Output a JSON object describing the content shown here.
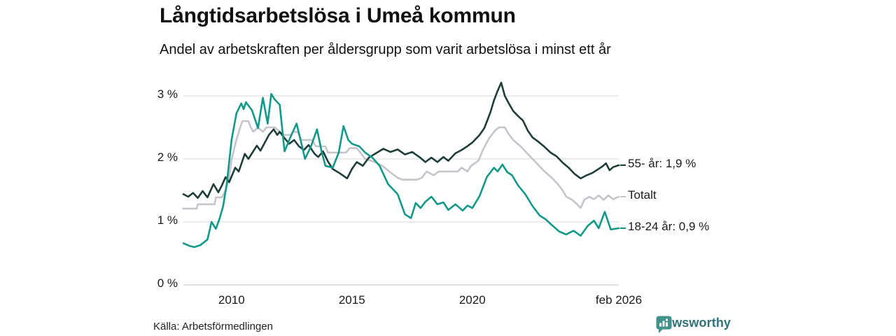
{
  "header": {
    "title": "Långtidsarbetslösa i Umeå kommun",
    "subtitle": "Andel av arbetskraften per åldersgrupp som varit arbetslösa i minst ett år"
  },
  "chart_data": {
    "type": "line",
    "title": "Långtidsarbetslösa i Umeå kommun",
    "subtitle": "Andel av arbetskraften per åldersgrupp som varit arbetslösa i minst ett år",
    "unit": "%",
    "x_axis": {
      "range": [
        2008.0,
        2026.083
      ],
      "ticks": [
        {
          "label": "2010",
          "value": 2010
        },
        {
          "label": "2015",
          "value": 2015
        },
        {
          "label": "2020",
          "value": 2020
        },
        {
          "label": "feb 2026",
          "value": 2026.083
        }
      ]
    },
    "y_axis": {
      "range": [
        0,
        3
      ],
      "grid": true,
      "ticks": [
        {
          "label": "0 %",
          "value": 0
        },
        {
          "label": "1 %",
          "value": 1
        },
        {
          "label": "2 %",
          "value": 2
        },
        {
          "label": "3 %",
          "value": 3
        }
      ]
    },
    "legend_position": "right-end-labels",
    "series": [
      {
        "name": "55- år",
        "end_label": "55- år: 1,9 %",
        "end_value": 1.9,
        "color": "#1e3c38",
        "points": [
          [
            2008.0,
            1.44
          ],
          [
            2008.2,
            1.4
          ],
          [
            2008.4,
            1.46
          ],
          [
            2008.6,
            1.38
          ],
          [
            2008.8,
            1.49
          ],
          [
            2009.0,
            1.39
          ],
          [
            2009.25,
            1.6
          ],
          [
            2009.45,
            1.47
          ],
          [
            2009.6,
            1.58
          ],
          [
            2009.75,
            1.71
          ],
          [
            2009.9,
            1.63
          ],
          [
            2010.15,
            1.86
          ],
          [
            2010.3,
            1.8
          ],
          [
            2010.55,
            2.08
          ],
          [
            2010.7,
            2.0
          ],
          [
            2011.05,
            2.21
          ],
          [
            2011.2,
            2.13
          ],
          [
            2011.55,
            2.38
          ],
          [
            2011.75,
            2.47
          ],
          [
            2011.9,
            2.38
          ],
          [
            2012.0,
            2.43
          ],
          [
            2012.2,
            2.33
          ],
          [
            2012.4,
            2.24
          ],
          [
            2012.6,
            2.3
          ],
          [
            2012.8,
            2.2
          ],
          [
            2013.0,
            2.14
          ],
          [
            2013.2,
            2.22
          ],
          [
            2013.45,
            2.08
          ],
          [
            2013.6,
            2.03
          ],
          [
            2013.8,
            2.12
          ],
          [
            2014.0,
            1.96
          ],
          [
            2014.2,
            1.84
          ],
          [
            2014.5,
            1.77
          ],
          [
            2014.8,
            1.69
          ],
          [
            2015.0,
            1.84
          ],
          [
            2015.2,
            1.95
          ],
          [
            2015.45,
            1.89
          ],
          [
            2015.7,
            2.02
          ],
          [
            2016.0,
            2.09
          ],
          [
            2016.3,
            2.16
          ],
          [
            2016.6,
            2.11
          ],
          [
            2016.9,
            2.15
          ],
          [
            2017.2,
            2.07
          ],
          [
            2017.5,
            2.11
          ],
          [
            2017.8,
            2.03
          ],
          [
            2018.05,
            1.95
          ],
          [
            2018.3,
            2.02
          ],
          [
            2018.55,
            1.95
          ],
          [
            2018.8,
            2.03
          ],
          [
            2019.0,
            1.97
          ],
          [
            2019.3,
            2.09
          ],
          [
            2019.55,
            2.14
          ],
          [
            2019.75,
            2.19
          ],
          [
            2020.0,
            2.26
          ],
          [
            2020.3,
            2.38
          ],
          [
            2020.5,
            2.49
          ],
          [
            2020.75,
            2.74
          ],
          [
            2020.9,
            2.93
          ],
          [
            2021.05,
            3.08
          ],
          [
            2021.2,
            3.21
          ],
          [
            2021.35,
            3.0
          ],
          [
            2021.5,
            2.89
          ],
          [
            2021.7,
            2.76
          ],
          [
            2021.9,
            2.68
          ],
          [
            2022.1,
            2.61
          ],
          [
            2022.3,
            2.45
          ],
          [
            2022.5,
            2.34
          ],
          [
            2022.75,
            2.27
          ],
          [
            2023.0,
            2.19
          ],
          [
            2023.25,
            2.1
          ],
          [
            2023.5,
            2.04
          ],
          [
            2023.75,
            1.94
          ],
          [
            2024.0,
            1.86
          ],
          [
            2024.25,
            1.76
          ],
          [
            2024.5,
            1.69
          ],
          [
            2024.75,
            1.74
          ],
          [
            2025.0,
            1.78
          ],
          [
            2025.2,
            1.83
          ],
          [
            2025.4,
            1.88
          ],
          [
            2025.55,
            1.93
          ],
          [
            2025.7,
            1.82
          ],
          [
            2025.85,
            1.87
          ],
          [
            2026.083,
            1.9
          ]
        ]
      },
      {
        "name": "Totalt",
        "end_label": "Totalt",
        "end_value": 1.4,
        "color": "#c5c4ca",
        "points": [
          [
            2008.0,
            1.21
          ],
          [
            2008.55,
            1.21
          ],
          [
            2008.6,
            1.28
          ],
          [
            2009.3,
            1.28
          ],
          [
            2009.35,
            1.39
          ],
          [
            2009.6,
            1.39
          ],
          [
            2009.75,
            1.5
          ],
          [
            2009.9,
            1.7
          ],
          [
            2010.0,
            1.99
          ],
          [
            2010.2,
            2.3
          ],
          [
            2010.35,
            2.49
          ],
          [
            2010.45,
            2.6
          ],
          [
            2010.7,
            2.6
          ],
          [
            2010.8,
            2.5
          ],
          [
            2010.9,
            2.43
          ],
          [
            2011.1,
            2.5
          ],
          [
            2011.3,
            2.43
          ],
          [
            2011.45,
            2.5
          ],
          [
            2011.8,
            2.5
          ],
          [
            2012.0,
            2.43
          ],
          [
            2012.15,
            2.38
          ],
          [
            2012.45,
            2.38
          ],
          [
            2012.55,
            2.43
          ],
          [
            2012.75,
            2.43
          ],
          [
            2012.9,
            2.3
          ],
          [
            2013.35,
            2.3
          ],
          [
            2013.5,
            2.2
          ],
          [
            2013.9,
            2.2
          ],
          [
            2014.0,
            2.1
          ],
          [
            2014.75,
            2.1
          ],
          [
            2014.9,
            2.17
          ],
          [
            2015.2,
            2.17
          ],
          [
            2015.35,
            2.1
          ],
          [
            2015.55,
            2.0
          ],
          [
            2015.95,
            1.95
          ],
          [
            2016.3,
            1.88
          ],
          [
            2016.55,
            1.8
          ],
          [
            2016.9,
            1.7
          ],
          [
            2017.1,
            1.67
          ],
          [
            2017.7,
            1.67
          ],
          [
            2017.9,
            1.7
          ],
          [
            2018.1,
            1.8
          ],
          [
            2018.4,
            1.74
          ],
          [
            2018.6,
            1.8
          ],
          [
            2019.4,
            1.8
          ],
          [
            2019.55,
            1.86
          ],
          [
            2019.8,
            1.8
          ],
          [
            2019.95,
            1.89
          ],
          [
            2020.25,
            1.97
          ],
          [
            2020.45,
            2.15
          ],
          [
            2020.7,
            2.33
          ],
          [
            2020.95,
            2.45
          ],
          [
            2021.1,
            2.5
          ],
          [
            2021.35,
            2.5
          ],
          [
            2021.5,
            2.4
          ],
          [
            2021.7,
            2.3
          ],
          [
            2022.0,
            2.2
          ],
          [
            2022.25,
            2.1
          ],
          [
            2022.5,
            2.0
          ],
          [
            2022.75,
            1.9
          ],
          [
            2023.0,
            1.8
          ],
          [
            2023.3,
            1.7
          ],
          [
            2023.55,
            1.6
          ],
          [
            2023.75,
            1.5
          ],
          [
            2023.9,
            1.4
          ],
          [
            2024.15,
            1.35
          ],
          [
            2024.35,
            1.28
          ],
          [
            2024.5,
            1.22
          ],
          [
            2024.65,
            1.35
          ],
          [
            2024.85,
            1.4
          ],
          [
            2025.05,
            1.36
          ],
          [
            2025.25,
            1.42
          ],
          [
            2025.45,
            1.35
          ],
          [
            2025.65,
            1.42
          ],
          [
            2025.85,
            1.36
          ],
          [
            2026.083,
            1.4
          ]
        ]
      },
      {
        "name": "18-24 år",
        "end_label": "18-24 år: 0,9 %",
        "end_value": 0.9,
        "color": "#10998a",
        "points": [
          [
            2008.0,
            0.66
          ],
          [
            2008.25,
            0.62
          ],
          [
            2008.45,
            0.6
          ],
          [
            2008.7,
            0.63
          ],
          [
            2009.0,
            0.72
          ],
          [
            2009.17,
            1.0
          ],
          [
            2009.35,
            0.89
          ],
          [
            2009.5,
            1.05
          ],
          [
            2009.65,
            1.25
          ],
          [
            2009.8,
            1.6
          ],
          [
            2010.0,
            2.3
          ],
          [
            2010.2,
            2.72
          ],
          [
            2010.4,
            2.88
          ],
          [
            2010.5,
            2.79
          ],
          [
            2010.6,
            2.9
          ],
          [
            2010.85,
            2.77
          ],
          [
            2011.1,
            2.49
          ],
          [
            2011.3,
            2.97
          ],
          [
            2011.5,
            2.56
          ],
          [
            2011.65,
            3.03
          ],
          [
            2011.8,
            2.94
          ],
          [
            2012.0,
            2.86
          ],
          [
            2012.2,
            2.12
          ],
          [
            2012.45,
            2.35
          ],
          [
            2012.7,
            2.56
          ],
          [
            2012.9,
            2.25
          ],
          [
            2013.05,
            2.0
          ],
          [
            2013.3,
            2.2
          ],
          [
            2013.55,
            2.47
          ],
          [
            2013.75,
            2.1
          ],
          [
            2013.9,
            1.89
          ],
          [
            2014.2,
            1.86
          ],
          [
            2014.45,
            2.1
          ],
          [
            2014.65,
            2.52
          ],
          [
            2014.85,
            2.3
          ],
          [
            2015.0,
            2.24
          ],
          [
            2015.3,
            2.2
          ],
          [
            2015.55,
            2.1
          ],
          [
            2015.85,
            2.02
          ],
          [
            2016.15,
            1.89
          ],
          [
            2016.5,
            1.6
          ],
          [
            2016.9,
            1.44
          ],
          [
            2017.2,
            1.12
          ],
          [
            2017.45,
            1.06
          ],
          [
            2017.65,
            1.3
          ],
          [
            2017.85,
            1.22
          ],
          [
            2018.05,
            1.32
          ],
          [
            2018.3,
            1.4
          ],
          [
            2018.55,
            1.28
          ],
          [
            2018.8,
            1.31
          ],
          [
            2019.0,
            1.19
          ],
          [
            2019.3,
            1.28
          ],
          [
            2019.6,
            1.18
          ],
          [
            2019.8,
            1.26
          ],
          [
            2020.0,
            1.22
          ],
          [
            2020.3,
            1.41
          ],
          [
            2020.6,
            1.71
          ],
          [
            2020.9,
            1.86
          ],
          [
            2021.05,
            1.8
          ],
          [
            2021.25,
            1.91
          ],
          [
            2021.45,
            1.79
          ],
          [
            2021.65,
            1.74
          ],
          [
            2021.9,
            1.58
          ],
          [
            2022.2,
            1.44
          ],
          [
            2022.5,
            1.25
          ],
          [
            2022.8,
            1.1
          ],
          [
            2023.05,
            1.04
          ],
          [
            2023.3,
            0.95
          ],
          [
            2023.6,
            0.85
          ],
          [
            2023.9,
            0.8
          ],
          [
            2024.2,
            0.86
          ],
          [
            2024.5,
            0.78
          ],
          [
            2024.8,
            0.94
          ],
          [
            2025.05,
            1.02
          ],
          [
            2025.25,
            0.9
          ],
          [
            2025.5,
            1.16
          ],
          [
            2025.75,
            0.88
          ],
          [
            2026.083,
            0.9
          ]
        ]
      }
    ],
    "grid_color": "#e3e3e3",
    "baseline_color": "#d7d7d7"
  },
  "footer": {
    "source": "Källa: Arbetsförmedlingen",
    "brand": "Newsworthy",
    "brand_color": "#34707a",
    "brand_icon_color": "#3f918b"
  }
}
